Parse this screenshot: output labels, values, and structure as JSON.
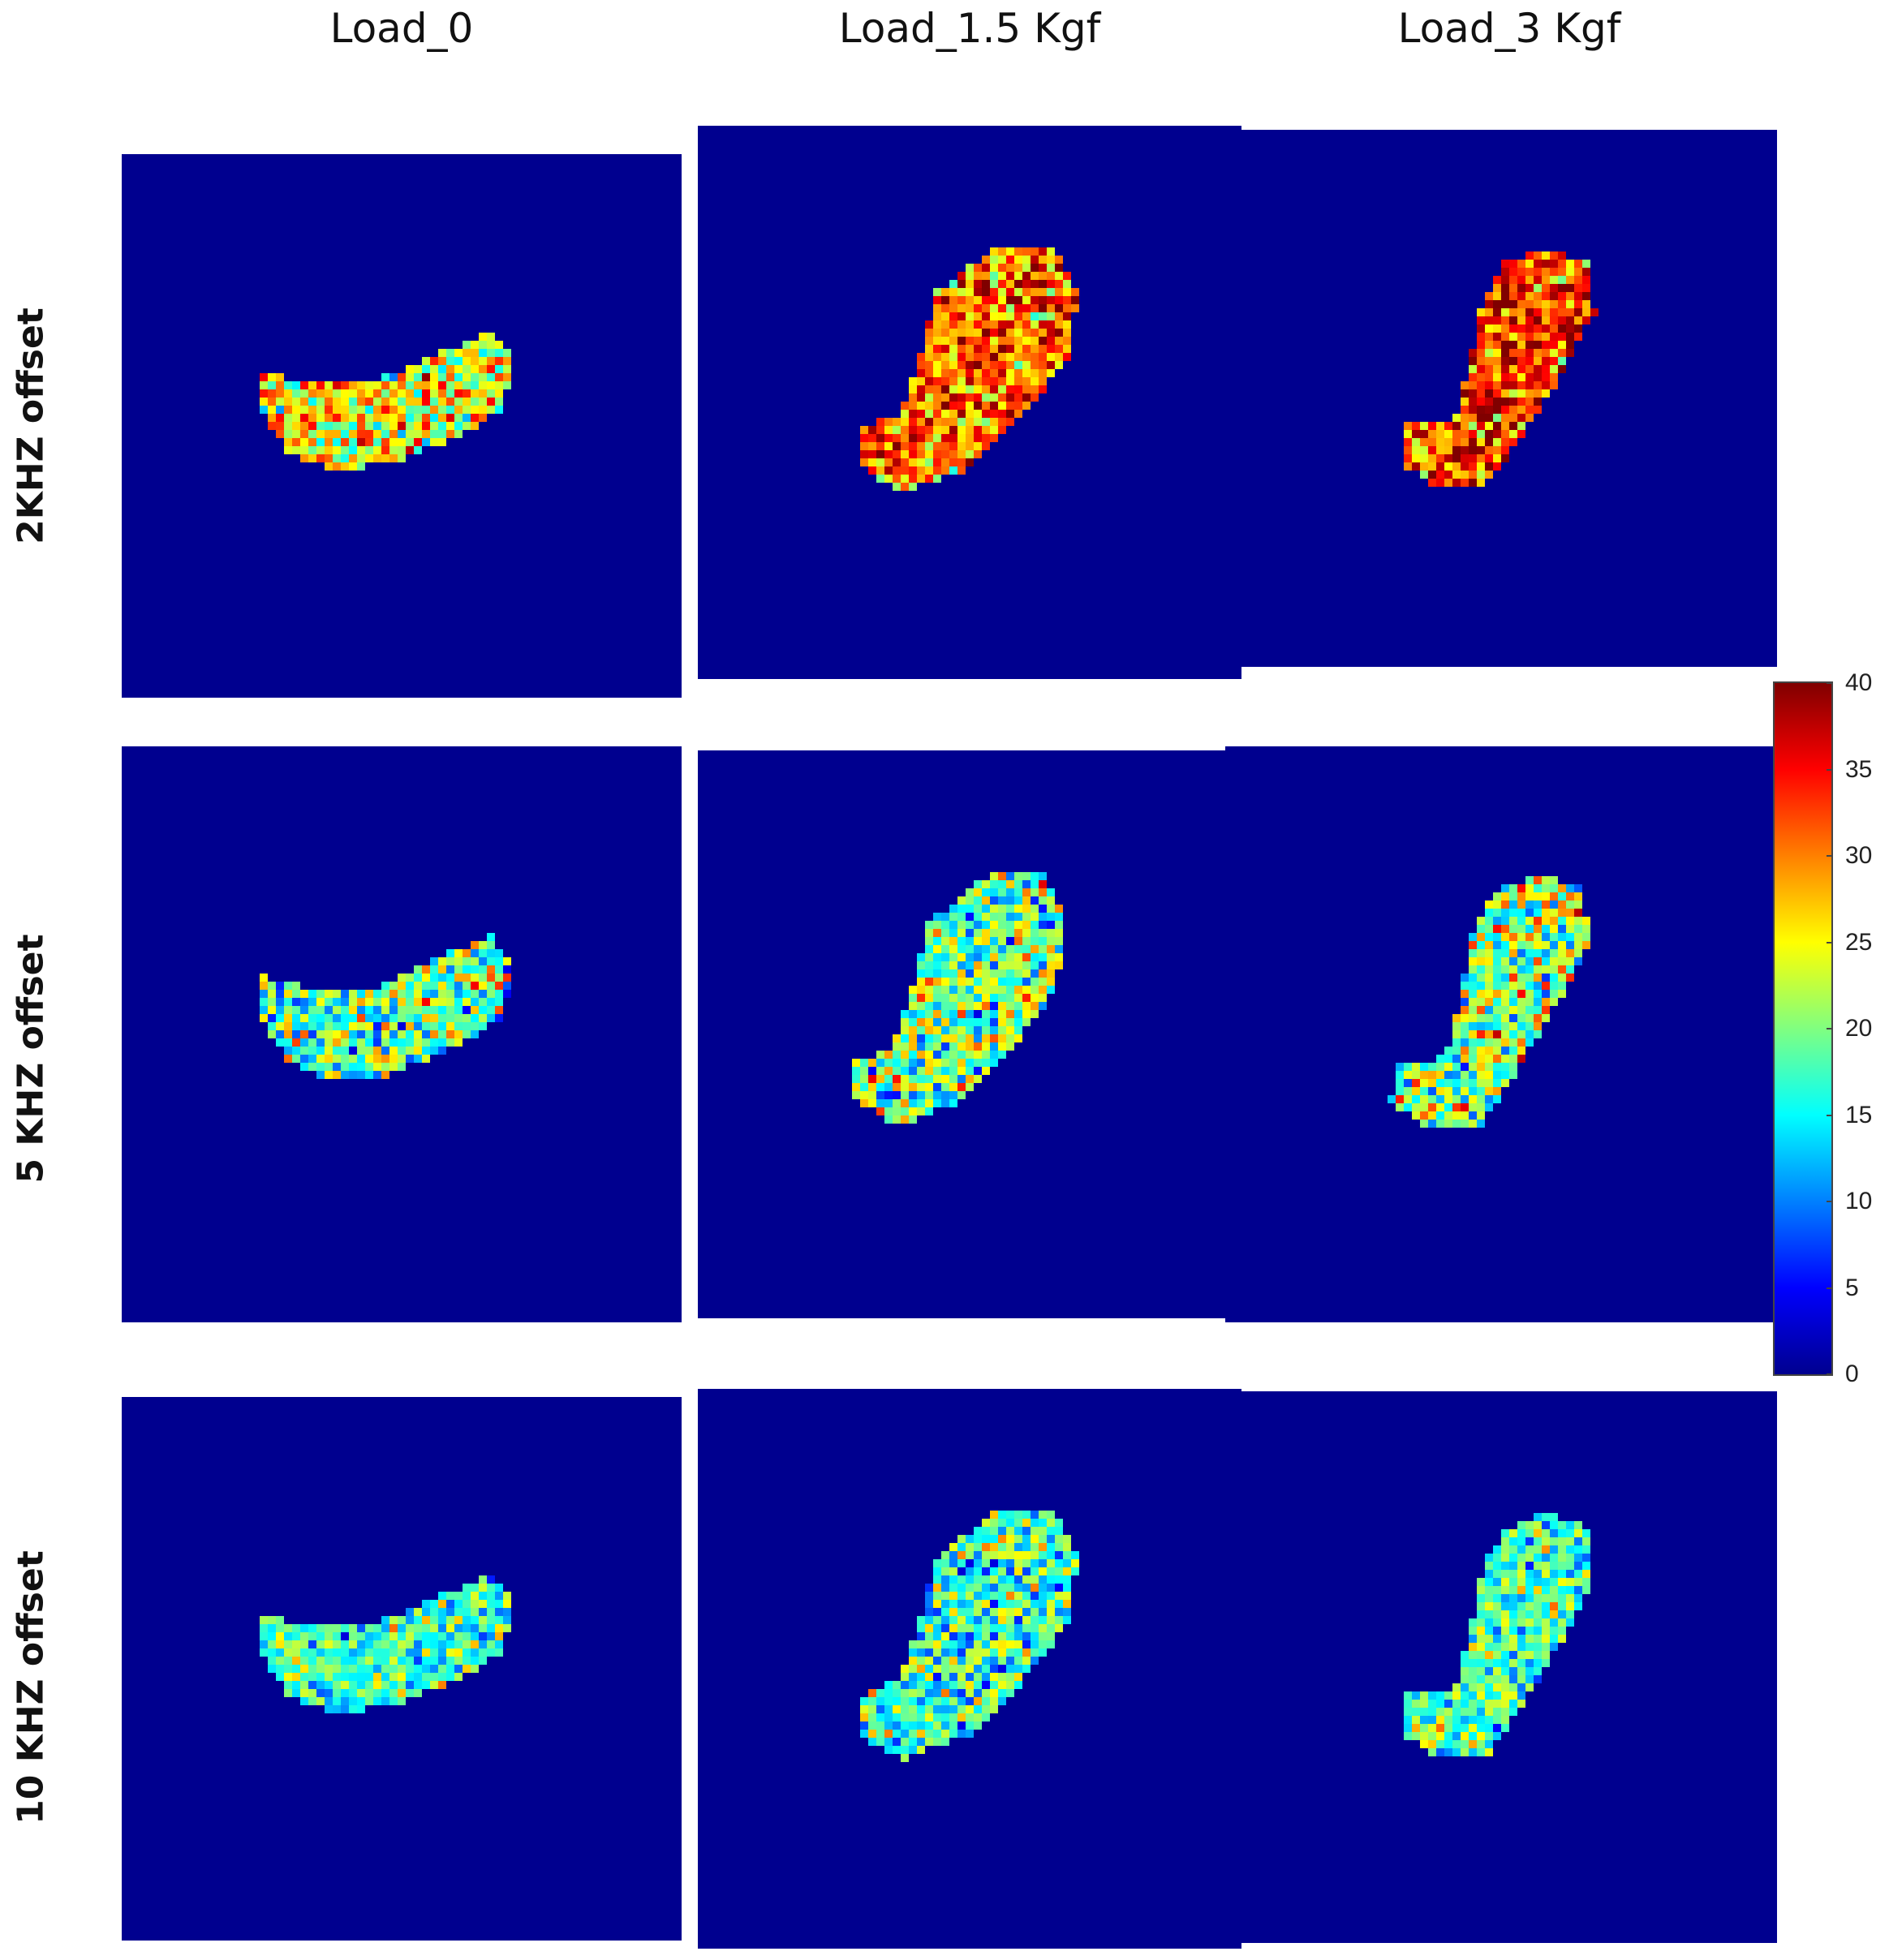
{
  "columns": [
    "Load_0",
    "Load_1.5 Kgf",
    "Load_3 Kgf"
  ],
  "rows": [
    "2KHZ offset",
    "5 KHZ offset",
    "10 KHZ offset"
  ],
  "colorbar": {
    "ticks": [
      "0",
      "5",
      "10",
      "15",
      "20",
      "25",
      "30",
      "35",
      "40"
    ],
    "min": 0,
    "max": 40,
    "colormap": "jet",
    "colors": [
      "#00008f",
      "#0000ff",
      "#0080ff",
      "#00ffff",
      "#80ff80",
      "#ffff00",
      "#ff8000",
      "#ff0000",
      "#800000"
    ]
  },
  "background_color": "#00008f",
  "panels": [
    {
      "row": "2KHZ offset",
      "column": "Load_0",
      "mean_level": 25,
      "spread": 7
    },
    {
      "row": "2KHZ offset",
      "column": "Load_1.5 Kgf",
      "mean_level": 31,
      "spread": 7
    },
    {
      "row": "2KHZ offset",
      "column": "Load_3 Kgf",
      "mean_level": 33,
      "spread": 7
    },
    {
      "row": "5 KHZ offset",
      "column": "Load_0",
      "mean_level": 19,
      "spread": 8
    },
    {
      "row": "5 KHZ offset",
      "column": "Load_1.5 Kgf",
      "mean_level": 20,
      "spread": 8
    },
    {
      "row": "5 KHZ offset",
      "column": "Load_3 Kgf",
      "mean_level": 21,
      "spread": 8
    },
    {
      "row": "10 KHZ offset",
      "column": "Load_0",
      "mean_level": 17,
      "spread": 6
    },
    {
      "row": "10 KHZ offset",
      "column": "Load_1.5 Kgf",
      "mean_level": 17,
      "spread": 7
    },
    {
      "row": "10 KHZ offset",
      "column": "Load_3 Kgf",
      "mean_level": 18,
      "spread": 6
    }
  ]
}
